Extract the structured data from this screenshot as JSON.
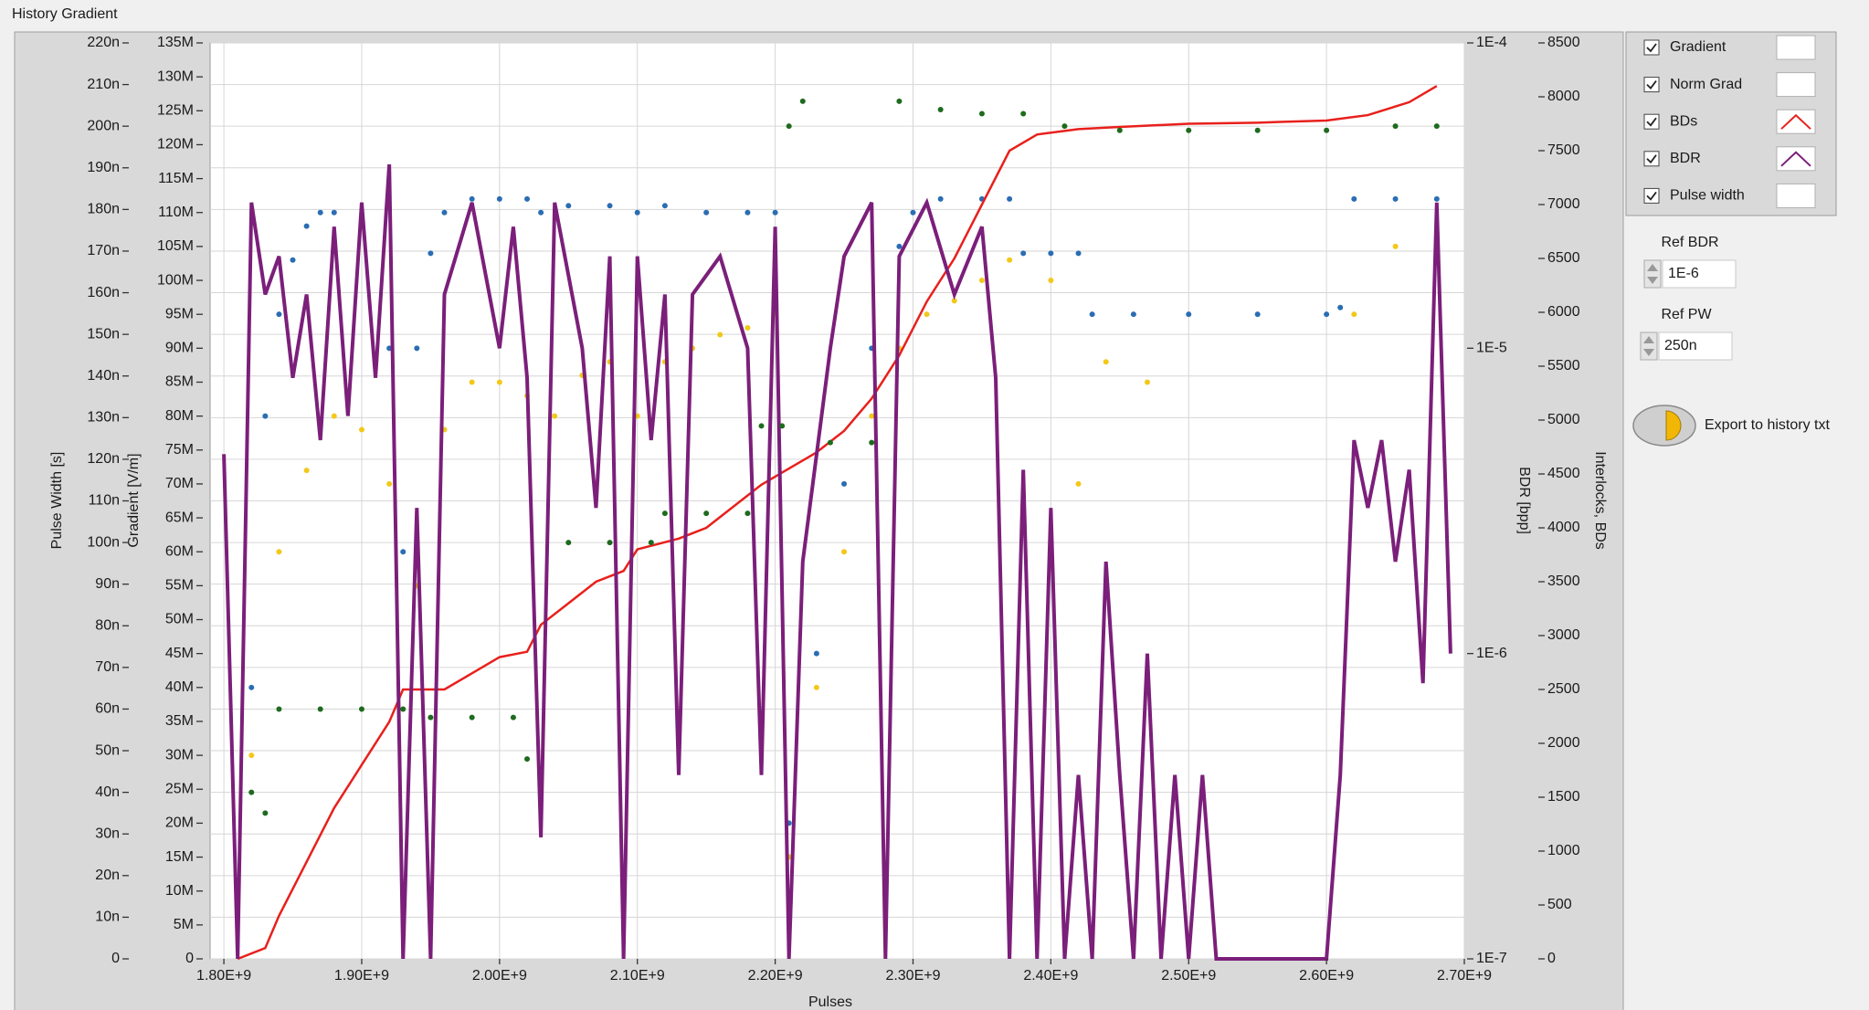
{
  "chart_data": {
    "type": "scatter",
    "title": "History Gradient",
    "xlabel": "Pulses",
    "ylabel": "Pulse Width [s]",
    "y2label": "Gradient [V/m]",
    "y3label": "BDR [bpp]",
    "y4label": "Interlocks, BDs",
    "grid": true,
    "xlim": [
      1790000000.0,
      2700000000.0
    ],
    "xticks": [
      {
        "value": 1800000000.0,
        "label": "1.80E+9"
      },
      {
        "value": 1900000000.0,
        "label": "1.90E+9"
      },
      {
        "value": 2000000000.0,
        "label": "2.00E+9"
      },
      {
        "value": 2100000000.0,
        "label": "2.10E+9"
      },
      {
        "value": 2200000000.0,
        "label": "2.20E+9"
      },
      {
        "value": 2300000000.0,
        "label": "2.30E+9"
      },
      {
        "value": 2400000000.0,
        "label": "2.40E+9"
      },
      {
        "value": 2500000000.0,
        "label": "2.50E+9"
      },
      {
        "value": 2600000000.0,
        "label": "2.60E+9"
      },
      {
        "value": 2700000000.0,
        "label": "2.70E+9"
      }
    ],
    "ylim": [
      0,
      2.2e-07
    ],
    "yticks": [
      0,
      {
        "value": 1e-08,
        "label": "10n"
      },
      {
        "value": 2e-08,
        "label": "20n"
      },
      {
        "value": 3e-08,
        "label": "30n"
      },
      {
        "value": 4e-08,
        "label": "40n"
      },
      {
        "value": 5e-08,
        "label": "50n"
      },
      {
        "value": 6e-08,
        "label": "60n"
      },
      {
        "value": 7e-08,
        "label": "70n"
      },
      {
        "value": 8e-08,
        "label": "80n"
      },
      {
        "value": 9e-08,
        "label": "90n"
      },
      {
        "value": 1e-07,
        "label": "100n"
      },
      {
        "value": 1.1e-07,
        "label": "110n"
      },
      {
        "value": 1.2e-07,
        "label": "120n"
      },
      {
        "value": 1.3e-07,
        "label": "130n"
      },
      {
        "value": 1.4e-07,
        "label": "140n"
      },
      {
        "value": 1.5e-07,
        "label": "150n"
      },
      {
        "value": 1.6e-07,
        "label": "160n"
      },
      {
        "value": 1.7e-07,
        "label": "170n"
      },
      {
        "value": 1.8e-07,
        "label": "180n"
      },
      {
        "value": 1.9e-07,
        "label": "190n"
      },
      {
        "value": 2e-07,
        "label": "200n"
      },
      {
        "value": 2.1e-07,
        "label": "210n"
      },
      {
        "value": 2.2e-07,
        "label": "220n"
      }
    ],
    "y2lim": [
      0,
      135000000
    ],
    "y2ticks": [
      0,
      {
        "value": 5000000,
        "label": "5M"
      },
      {
        "value": 10000000,
        "label": "10M"
      },
      {
        "value": 15000000,
        "label": "15M"
      },
      {
        "value": 20000000,
        "label": "20M"
      },
      {
        "value": 25000000,
        "label": "25M"
      },
      {
        "value": 30000000,
        "label": "30M"
      },
      {
        "value": 35000000,
        "label": "35M"
      },
      {
        "value": 40000000,
        "label": "40M"
      },
      {
        "value": 45000000,
        "label": "45M"
      },
      {
        "value": 50000000,
        "label": "50M"
      },
      {
        "value": 55000000,
        "label": "55M"
      },
      {
        "value": 60000000,
        "label": "60M"
      },
      {
        "value": 65000000,
        "label": "65M"
      },
      {
        "value": 70000000,
        "label": "70M"
      },
      {
        "value": 75000000,
        "label": "75M"
      },
      {
        "value": 80000000,
        "label": "80M"
      },
      {
        "value": 85000000,
        "label": "85M"
      },
      {
        "value": 90000000,
        "label": "90M"
      },
      {
        "value": 95000000,
        "label": "95M"
      },
      {
        "value": 100000000,
        "label": "100M"
      },
      {
        "value": 105000000,
        "label": "105M"
      },
      {
        "value": 110000000,
        "label": "110M"
      },
      {
        "value": 115000000,
        "label": "115M"
      },
      {
        "value": 120000000,
        "label": "120M"
      },
      {
        "value": 125000000,
        "label": "125M"
      },
      {
        "value": 130000000,
        "label": "130M"
      },
      {
        "value": 135000000,
        "label": "135M"
      }
    ],
    "y3lim": [
      1e-07,
      0.0001
    ],
    "y3log": true,
    "y3ticks": [
      {
        "value": 1e-07,
        "label": "1E-7"
      },
      {
        "value": 1e-06,
        "label": "1E-6"
      },
      {
        "value": 1e-05,
        "label": "1E-5"
      },
      {
        "value": 0.0001,
        "label": "1E-4"
      }
    ],
    "y4lim": [
      0,
      8500
    ],
    "y4ticks": [
      0,
      500,
      1000,
      1500,
      2000,
      2500,
      3000,
      3500,
      4000,
      4500,
      5000,
      5500,
      6000,
      6500,
      7000,
      7500,
      8000,
      8500
    ],
    "series": [
      {
        "name": "Gradient",
        "color": "#2a6db3",
        "axis": "y2",
        "style": "points",
        "x": [
          1820000000.0,
          1830000000.0,
          1840000000.0,
          1850000000.0,
          1860000000.0,
          1870000000.0,
          1880000000.0,
          1900000000.0,
          1920000000.0,
          1930000000.0,
          1940000000.0,
          1950000000.0,
          1960000000.0,
          1980000000.0,
          2000000000.0,
          2020000000.0,
          2030000000.0,
          2050000000.0,
          2080000000.0,
          2100000000.0,
          2120000000.0,
          2150000000.0,
          2180000000.0,
          2200000000.0,
          2210000000.0,
          2230000000.0,
          2250000000.0,
          2270000000.0,
          2290000000.0,
          2300000000.0,
          2320000000.0,
          2350000000.0,
          2370000000.0,
          2380000000.0,
          2400000000.0,
          2420000000.0,
          2430000000.0,
          2460000000.0,
          2500000000.0,
          2550000000.0,
          2600000000.0,
          2610000000.0,
          2620000000.0,
          2650000000.0,
          2680000000.0
        ],
        "values": [
          40000000,
          80000000,
          95000000,
          103000000,
          108000000,
          110000000,
          110000000,
          108000000,
          90000000,
          60000000,
          90000000,
          104000000,
          110000000,
          112000000,
          112000000,
          112000000,
          110000000,
          111000000,
          111000000,
          110000000,
          111000000,
          110000000,
          110000000,
          110000000,
          20000000,
          45000000,
          70000000,
          90000000,
          105000000,
          110000000,
          112000000,
          112000000,
          112000000,
          104000000,
          104000000,
          104000000,
          95000000,
          95000000,
          95000000,
          95000000,
          95000000,
          96000000,
          112000000,
          112000000,
          112000000
        ]
      },
      {
        "name": "Norm Grad",
        "color": "#f2c81a",
        "axis": "y2",
        "style": "points",
        "x": [
          1820000000.0,
          1840000000.0,
          1860000000.0,
          1880000000.0,
          1900000000.0,
          1920000000.0,
          1940000000.0,
          1960000000.0,
          1980000000.0,
          2000000000.0,
          2020000000.0,
          2040000000.0,
          2060000000.0,
          2080000000.0,
          2100000000.0,
          2120000000.0,
          2140000000.0,
          2160000000.0,
          2180000000.0,
          2200000000.0,
          2210000000.0,
          2230000000.0,
          2250000000.0,
          2270000000.0,
          2290000000.0,
          2310000000.0,
          2330000000.0,
          2350000000.0,
          2370000000.0,
          2400000000.0,
          2420000000.0,
          2440000000.0,
          2470000000.0,
          2620000000.0,
          2650000000.0,
          2680000000.0
        ],
        "values": [
          30000000,
          60000000,
          72000000,
          80000000,
          78000000,
          70000000,
          55000000,
          78000000,
          85000000,
          85000000,
          83000000,
          80000000,
          86000000,
          88000000,
          80000000,
          88000000,
          90000000,
          92000000,
          93000000,
          95000000,
          15000000,
          40000000,
          60000000,
          80000000,
          90000000,
          95000000,
          97000000,
          100000000,
          103000000,
          100000000,
          70000000,
          88000000,
          85000000,
          95000000,
          105000000,
          107000000
        ]
      },
      {
        "name": "BDs",
        "color": "#e8201c",
        "axis": "y4",
        "style": "line",
        "x": [
          1810000000.0,
          1830000000.0,
          1840000000.0,
          1860000000.0,
          1880000000.0,
          1900000000.0,
          1920000000.0,
          1930000000.0,
          1940000000.0,
          1960000000.0,
          1980000000.0,
          2000000000.0,
          2020000000.0,
          2030000000.0,
          2050000000.0,
          2070000000.0,
          2090000000.0,
          2100000000.0,
          2130000000.0,
          2150000000.0,
          2170000000.0,
          2190000000.0,
          2210000000.0,
          2230000000.0,
          2250000000.0,
          2270000000.0,
          2290000000.0,
          2310000000.0,
          2330000000.0,
          2350000000.0,
          2370000000.0,
          2390000000.0,
          2420000000.0,
          2450000000.0,
          2500000000.0,
          2550000000.0,
          2600000000.0,
          2630000000.0,
          2660000000.0,
          2680000000.0
        ],
        "values": [
          0,
          100,
          400,
          900,
          1400,
          1800,
          2200,
          2500,
          2500,
          2500,
          2650,
          2800,
          2850,
          3100,
          3300,
          3500,
          3600,
          3800,
          3900,
          4000,
          4200,
          4400,
          4550,
          4700,
          4900,
          5200,
          5600,
          6100,
          6500,
          7000,
          7500,
          7650,
          7700,
          7720,
          7750,
          7760,
          7780,
          7830,
          7950,
          8100
        ]
      },
      {
        "name": "BDR",
        "color": "#7b1f7a",
        "axis": "y3",
        "style": "line",
        "x": [
          1800000000.0,
          1810000000.0,
          1820000000.0,
          1830000000.0,
          1840000000.0,
          1850000000.0,
          1860000000.0,
          1870000000.0,
          1880000000.0,
          1890000000.0,
          1900000000.0,
          1910000000.0,
          1920000000.0,
          1930000000.0,
          1940000000.0,
          1950000000.0,
          1960000000.0,
          1980000000.0,
          2000000000.0,
          2010000000.0,
          2020000000.0,
          2030000000.0,
          2040000000.0,
          2060000000.0,
          2070000000.0,
          2080000000.0,
          2090000000.0,
          2100000000.0,
          2110000000.0,
          2120000000.0,
          2130000000.0,
          2140000000.0,
          2160000000.0,
          2180000000.0,
          2190000000.0,
          2200000000.0,
          2210000000.0,
          2220000000.0,
          2240000000.0,
          2250000000.0,
          2270000000.0,
          2280000000.0,
          2290000000.0,
          2310000000.0,
          2330000000.0,
          2350000000.0,
          2360000000.0,
          2370000000.0,
          2380000000.0,
          2390000000.0,
          2400000000.0,
          2410000000.0,
          2420000000.0,
          2430000000.0,
          2440000000.0,
          2450000000.0,
          2460000000.0,
          2470000000.0,
          2480000000.0,
          2490000000.0,
          2500000000.0,
          2510000000.0,
          2520000000.0,
          2600000000.0,
          2610000000.0,
          2620000000.0,
          2630000000.0,
          2640000000.0,
          2650000000.0,
          2660000000.0,
          2670000000.0,
          2680000000.0,
          2690000000.0
        ],
        "values": [
          4.5e-06,
          1e-07,
          3e-05,
          1.5e-05,
          2e-05,
          8e-06,
          1.5e-05,
          5e-06,
          2.5e-05,
          6e-06,
          3e-05,
          8e-06,
          4e-05,
          1e-07,
          3e-06,
          1e-07,
          1.5e-05,
          3e-05,
          1e-05,
          2.5e-05,
          8e-06,
          2.5e-07,
          3e-05,
          1e-05,
          3e-06,
          2e-05,
          1e-07,
          2e-05,
          5e-06,
          1.5e-05,
          4e-07,
          1.5e-05,
          2e-05,
          1e-05,
          4e-07,
          2.5e-05,
          1e-07,
          2e-06,
          1e-05,
          2e-05,
          3e-05,
          1e-07,
          2e-05,
          3e-05,
          1.5e-05,
          2.5e-05,
          8e-06,
          1e-07,
          4e-06,
          1e-07,
          3e-06,
          1e-07,
          4e-07,
          1e-07,
          2e-06,
          4e-07,
          1e-07,
          1e-06,
          1e-07,
          4e-07,
          1e-07,
          4e-07,
          1e-07,
          1e-07,
          4e-07,
          5e-06,
          3e-06,
          5e-06,
          2e-06,
          4e-06,
          8e-07,
          3e-05,
          1e-06
        ]
      },
      {
        "name": "Pulse width",
        "color": "#1e6b1e",
        "axis": "y",
        "style": "points",
        "x": [
          1820000000.0,
          1830000000.0,
          1840000000.0,
          1870000000.0,
          1900000000.0,
          1930000000.0,
          1950000000.0,
          1980000000.0,
          2010000000.0,
          2020000000.0,
          2050000000.0,
          2080000000.0,
          2110000000.0,
          2120000000.0,
          2150000000.0,
          2180000000.0,
          2190000000.0,
          2205000000.0,
          2210000000.0,
          2220000000.0,
          2240000000.0,
          2270000000.0,
          2290000000.0,
          2320000000.0,
          2350000000.0,
          2380000000.0,
          2410000000.0,
          2450000000.0,
          2500000000.0,
          2550000000.0,
          2600000000.0,
          2650000000.0,
          2680000000.0
        ],
        "values": [
          4e-08,
          3.5e-08,
          6e-08,
          6e-08,
          6e-08,
          6e-08,
          5.8e-08,
          5.8e-08,
          5.8e-08,
          4.8e-08,
          1e-07,
          1e-07,
          1e-07,
          1.07e-07,
          1.07e-07,
          1.07e-07,
          1.28e-07,
          1.28e-07,
          2e-07,
          2.06e-07,
          1.24e-07,
          1.24e-07,
          2.06e-07,
          2.04e-07,
          2.03e-07,
          2.03e-07,
          2e-07,
          1.99e-07,
          1.99e-07,
          1.99e-07,
          1.99e-07,
          2e-07,
          2e-07
        ]
      }
    ]
  },
  "controls": {
    "ref_bdr": {
      "label": "Ref BDR",
      "value": "1E-6"
    },
    "ref_pw": {
      "label": "Ref PW",
      "value": "250n"
    },
    "export": "Export to history txt"
  }
}
